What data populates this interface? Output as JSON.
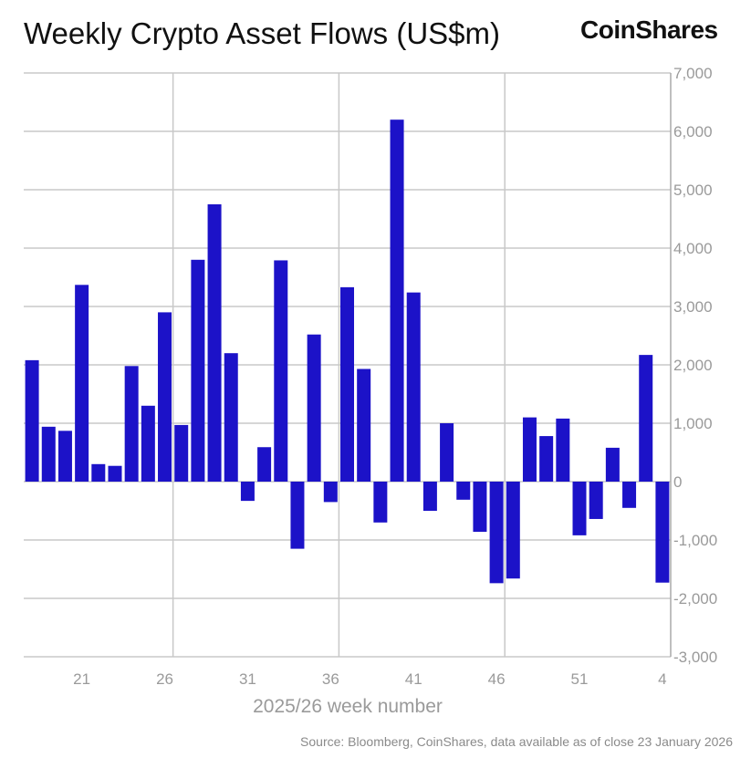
{
  "header": {
    "title": "Weekly Crypto Asset Flows (US$m)",
    "logo": "CoinShares"
  },
  "source": "Source: Bloomberg, CoinShares, data available as of close 23 January 2026",
  "chart_data": {
    "type": "bar",
    "title": "Weekly Crypto Asset Flows (US$m)",
    "xlabel": "2025/26 week number",
    "ylabel": "",
    "ylim": [
      -3000,
      7000
    ],
    "yticks": [
      7000,
      6000,
      5000,
      4000,
      3000,
      2000,
      1000,
      0,
      -1000,
      -2000,
      -3000
    ],
    "ytick_labels": [
      "7,000",
      "6,000",
      "5,000",
      "4,000",
      "3,000",
      "2,000",
      "1,000",
      "0",
      "-1,000",
      "-2,000",
      "-3,000"
    ],
    "xtick_labels": [
      "21",
      "26",
      "31",
      "36",
      "41",
      "46",
      "51",
      "4"
    ],
    "y_axis_position": "right",
    "grid": true,
    "bar_color": "#1c12c8",
    "categories": [
      "18",
      "19",
      "20",
      "21",
      "22",
      "23",
      "24",
      "25",
      "26",
      "27",
      "28",
      "29",
      "30",
      "31",
      "32",
      "33",
      "34",
      "35",
      "36",
      "37",
      "38",
      "39",
      "40",
      "41",
      "42",
      "43",
      "44",
      "45",
      "46",
      "47",
      "48",
      "49",
      "50",
      "51",
      "52",
      "1",
      "2",
      "3",
      "4"
    ],
    "values": [
      2080,
      940,
      870,
      3370,
      300,
      270,
      1980,
      1300,
      2900,
      970,
      3800,
      4750,
      2200,
      -330,
      590,
      3790,
      -1150,
      2520,
      -350,
      3330,
      1930,
      -700,
      6200,
      3240,
      -500,
      1000,
      -310,
      -860,
      -1740,
      -1660,
      1100,
      780,
      1080,
      -920,
      -640,
      580,
      -450,
      2170,
      -1730
    ]
  }
}
